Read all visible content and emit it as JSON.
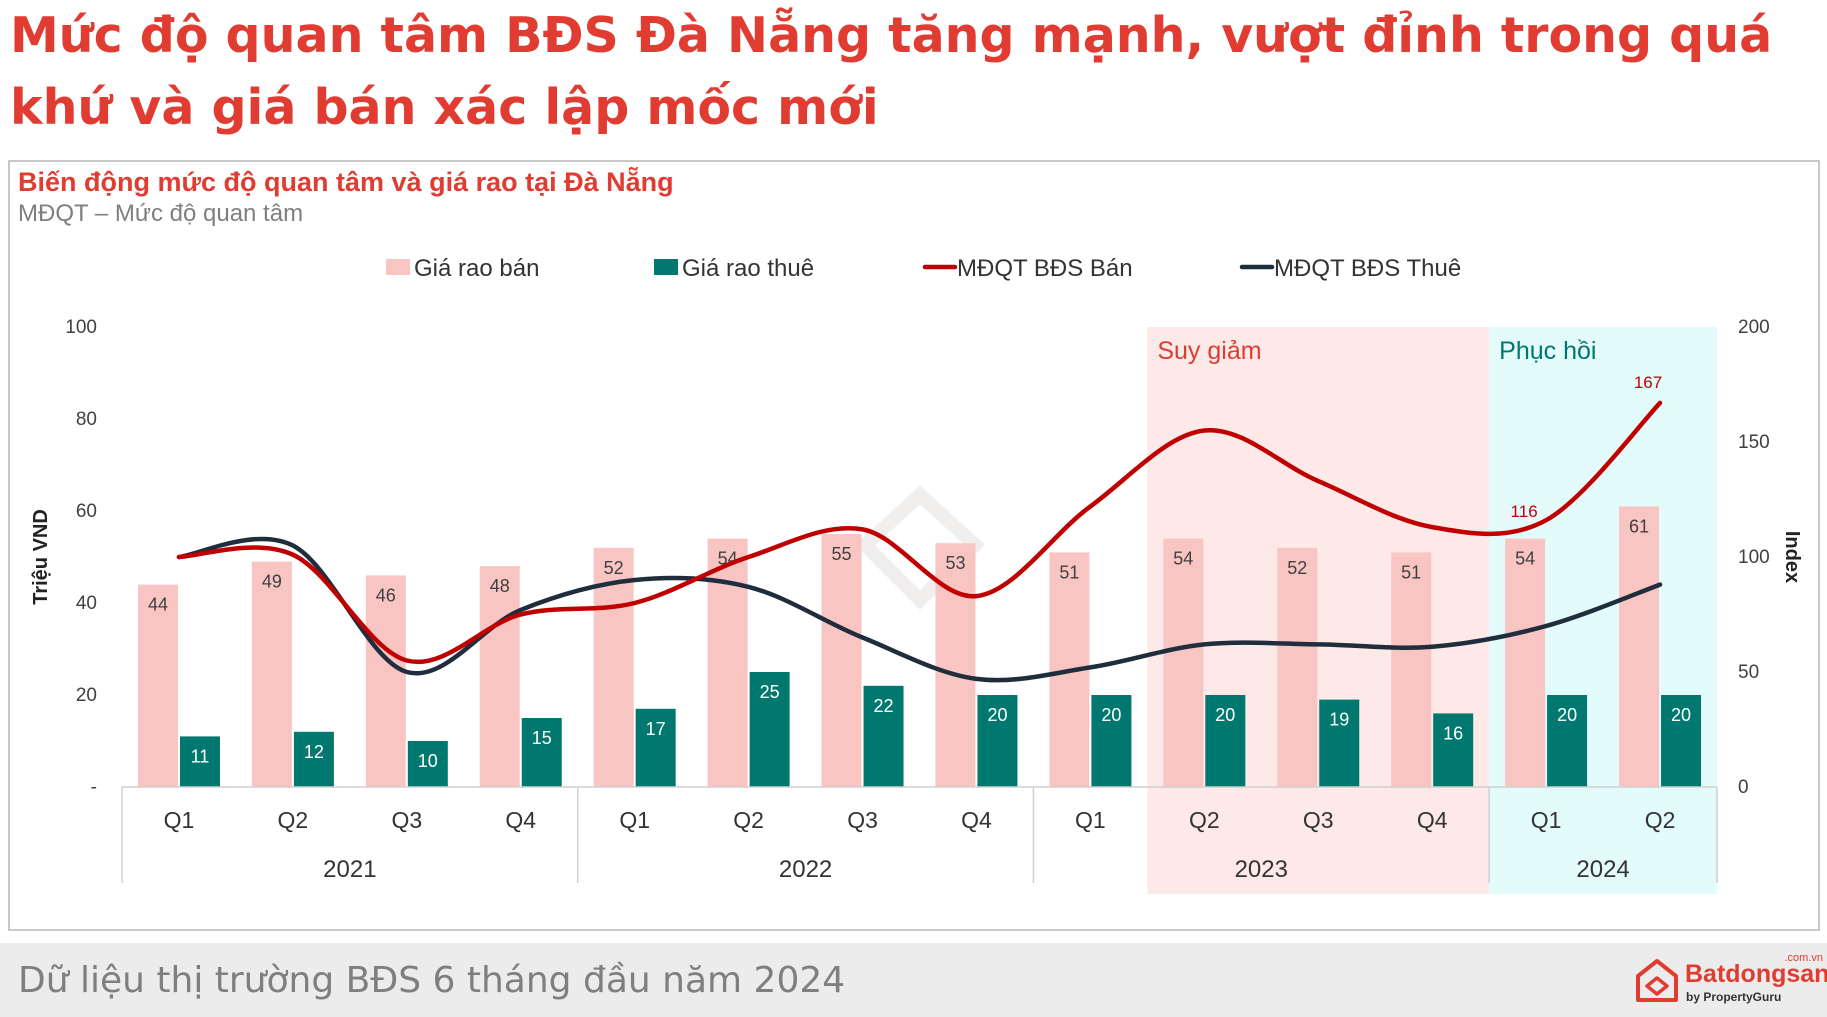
{
  "headline": "Mức độ quan tâm BĐS Đà Nẵng tăng mạnh, vượt đỉnh trong quá khứ và giá bán xác lập mốc mới",
  "footer": {
    "text": "Dữ liệu thị trường BĐS 6 tháng đầu năm 2024",
    "logo_name": "Batdongsan",
    "logo_domain": ".com.vn",
    "logo_sub": "by PropertyGuru"
  },
  "colors": {
    "accent_red": "#e03c31",
    "sale_bar": "#f9c5c2",
    "rent_bar": "#00786f",
    "sale_line": "#c00000",
    "rent_line": "#1f2d3d",
    "decline_band": "#fde9e7",
    "recovery_band": "#e4fbfb",
    "recovery_text": "#00786f"
  },
  "chart_data": {
    "type": "bar",
    "title": "Biến động mức độ quan tâm và giá rao tại Đà Nẵng",
    "subtitle": "MĐQT – Mức độ quan tâm",
    "ylabel": "Triệu VND",
    "y2label": "Index",
    "ylim": [
      0,
      100
    ],
    "y2lim": [
      0,
      200
    ],
    "y_ticks": [
      "-",
      "20",
      "40",
      "60",
      "80",
      "100"
    ],
    "y2_ticks": [
      "0",
      "50",
      "100",
      "150",
      "200"
    ],
    "categories": [
      "Q1",
      "Q2",
      "Q3",
      "Q4",
      "Q1",
      "Q2",
      "Q3",
      "Q4",
      "Q1",
      "Q2",
      "Q3",
      "Q4",
      "Q1",
      "Q2"
    ],
    "years": [
      {
        "label": "2021",
        "start": 0,
        "end": 3
      },
      {
        "label": "2022",
        "start": 4,
        "end": 7
      },
      {
        "label": "2023",
        "start": 8,
        "end": 11
      },
      {
        "label": "2024",
        "start": 12,
        "end": 13
      }
    ],
    "series": [
      {
        "name": "Giá rao bán",
        "type": "bar",
        "axis": "left",
        "values": [
          44,
          49,
          46,
          48,
          52,
          54,
          55,
          53,
          51,
          54,
          52,
          51,
          54,
          61
        ]
      },
      {
        "name": "Giá rao thuê",
        "type": "bar",
        "axis": "left",
        "values": [
          11,
          12,
          10,
          15,
          17,
          25,
          22,
          20,
          20,
          20,
          19,
          16,
          20,
          20
        ]
      },
      {
        "name": "MĐQT BĐS Bán",
        "type": "line",
        "axis": "right",
        "values": [
          100,
          101,
          55,
          75,
          80,
          100,
          112,
          83,
          122,
          155,
          133,
          113,
          116,
          167
        ]
      },
      {
        "name": "MĐQT BĐS Thuê",
        "type": "line",
        "axis": "right",
        "values": [
          100,
          105,
          50,
          77,
          90,
          87,
          65,
          47,
          52,
          62,
          62,
          61,
          70,
          88
        ]
      }
    ],
    "point_labels": [
      {
        "series": "MĐQT BĐS Bán",
        "index": 12,
        "text": "116"
      },
      {
        "series": "MĐQT BĐS Bán",
        "index": 13,
        "text": "167"
      }
    ],
    "annotations": [
      {
        "text": "Suy giảm",
        "start": 9,
        "end": 11
      },
      {
        "text": "Phục hồi",
        "start": 12,
        "end": 13
      }
    ],
    "legend": "top-center"
  }
}
